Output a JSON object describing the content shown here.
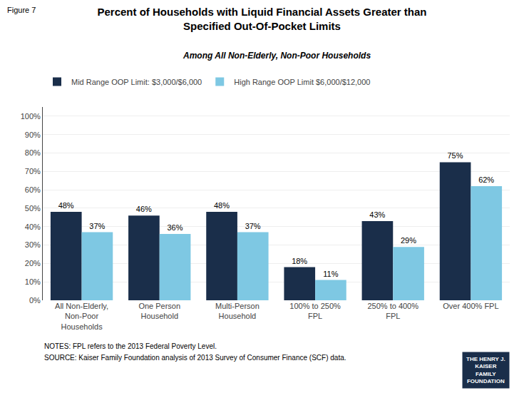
{
  "chart_data": {
    "type": "bar",
    "title": "Percent of Households with Liquid Financial Assets Greater than\nSpecified Out-Of-Pocket Limits",
    "subtitle": "Among All Non-Elderly, Non-Poor Households",
    "categories": [
      "All Non-Elderly,\nNon-Poor\nHouseholds",
      "One Person\nHousehold",
      "Multi-Person\nHousehold",
      "100% to 250%\nFPL",
      "250% to 400%\nFPL",
      "Over 400% FPL"
    ],
    "series": [
      {
        "name": "Mid Range OOP Limit: $3,000/$6,000",
        "color": "#1a2e4a",
        "values": [
          48,
          46,
          48,
          18,
          43,
          75
        ],
        "value_labels": [
          "48%",
          "46%",
          "48%",
          "18%",
          "43%",
          "75%"
        ]
      },
      {
        "name": "High Range OOP Limit $6,000/$12,000",
        "color": "#7ec8e3",
        "values": [
          37,
          36,
          37,
          11,
          29,
          62
        ],
        "value_labels": [
          "37%",
          "36%",
          "37%",
          "11%",
          "29%",
          "62%"
        ]
      }
    ],
    "ylim": [
      0,
      105
    ],
    "yticks": [
      {
        "value": 0,
        "label": "0%"
      },
      {
        "value": 10,
        "label": "10%"
      },
      {
        "value": 20,
        "label": "20%"
      },
      {
        "value": 30,
        "label": "30%"
      },
      {
        "value": 40,
        "label": "40%"
      },
      {
        "value": 50,
        "label": "50%"
      },
      {
        "value": 60,
        "label": "60%"
      },
      {
        "value": 70,
        "label": "70%"
      },
      {
        "value": 80,
        "label": "80%"
      },
      {
        "value": 90,
        "label": "90%"
      },
      {
        "value": 100,
        "label": "100%"
      }
    ],
    "grid": true,
    "legend": "upper left",
    "data_labels": true,
    "annotations": [
      "Figure 7",
      "NOTES: FPL refers to the 2013 Federal Poverty Level.",
      "SOURCE: Kaiser Family Foundation analysis of 2013 Survey of Consumer Finance (SCF) data.",
      "THE HENRY J.\nKAISER\nFAMILY\nFOUNDATION"
    ]
  }
}
